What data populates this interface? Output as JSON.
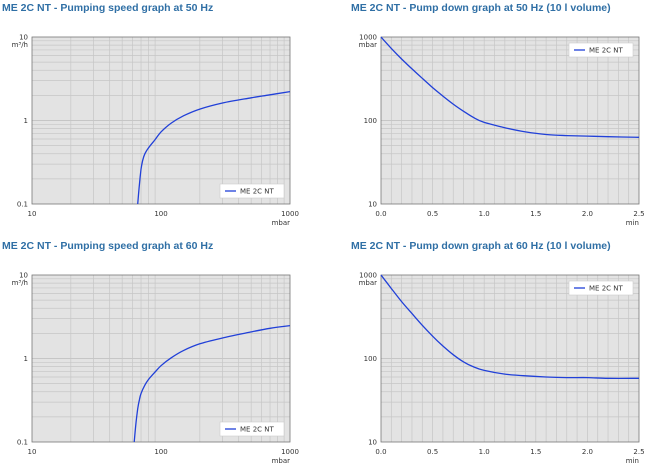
{
  "colors": {
    "title": "#2f6fa5",
    "plot_background": "#e3e3e3",
    "grid": "#c6c6c6",
    "series": "#2140d8"
  },
  "chart_data": [
    {
      "type": "line",
      "title": "ME 2C NT - Pumping speed graph at 50 Hz",
      "x_unit": "mbar",
      "y_unit": "m³/h",
      "x_scale": "log",
      "y_scale": "log",
      "xlim": [
        10,
        1000
      ],
      "ylim": [
        0.1,
        10
      ],
      "x_ticks": [
        "10",
        "100",
        "1000"
      ],
      "y_ticks": [
        "0.1",
        "1",
        "10"
      ],
      "legend_position": "bottom-right",
      "grid": true,
      "series": [
        {
          "name": "ME 2C NT",
          "x": [
            66,
            68,
            70,
            72,
            75,
            80,
            90,
            100,
            120,
            150,
            200,
            300,
            500,
            700,
            1000
          ],
          "y": [
            0.1,
            0.17,
            0.26,
            0.33,
            0.4,
            0.47,
            0.59,
            0.73,
            0.93,
            1.14,
            1.37,
            1.62,
            1.87,
            2.03,
            2.22
          ]
        }
      ]
    },
    {
      "type": "line",
      "title": "ME 2C NT - Pump down graph at 50 Hz (10 l volume)",
      "x_unit": "min",
      "y_unit": "mbar",
      "x_scale": "linear",
      "y_scale": "log",
      "xlim": [
        0,
        2.5
      ],
      "ylim": [
        10,
        1000
      ],
      "x_ticks": [
        "0.0",
        "0.5",
        "1.0",
        "1.5",
        "2.0",
        "2.5"
      ],
      "y_ticks": [
        "10",
        "100",
        "1000"
      ],
      "legend_position": "top-right",
      "grid": true,
      "series": [
        {
          "name": "ME 2C NT",
          "x": [
            0,
            0.1,
            0.2,
            0.3,
            0.4,
            0.5,
            0.6,
            0.7,
            0.8,
            0.9,
            1.0,
            1.2,
            1.4,
            1.6,
            1.8,
            2.0,
            2.2,
            2.5
          ],
          "y": [
            1000,
            730,
            545,
            415,
            320,
            248,
            196,
            157,
            129,
            108,
            95,
            82,
            73,
            68,
            66,
            65,
            64,
            63
          ]
        }
      ]
    },
    {
      "type": "line",
      "title": "ME 2C NT - Pumping speed graph at 60 Hz",
      "x_unit": "mbar",
      "y_unit": "m³/h",
      "x_scale": "log",
      "y_scale": "log",
      "xlim": [
        10,
        1000
      ],
      "ylim": [
        0.1,
        10
      ],
      "x_ticks": [
        "10",
        "100",
        "1000"
      ],
      "y_ticks": [
        "0.1",
        "1",
        "10"
      ],
      "legend_position": "bottom-right",
      "grid": true,
      "series": [
        {
          "name": "ME 2C NT",
          "x": [
            62,
            64,
            66,
            68,
            70,
            75,
            80,
            90,
            100,
            120,
            150,
            200,
            300,
            500,
            700,
            1000
          ],
          "y": [
            0.1,
            0.17,
            0.25,
            0.32,
            0.38,
            0.48,
            0.56,
            0.69,
            0.82,
            1.02,
            1.25,
            1.5,
            1.76,
            2.08,
            2.3,
            2.48
          ]
        }
      ]
    },
    {
      "type": "line",
      "title": "ME 2C NT - Pump down graph at 60 Hz (10 l volume)",
      "x_unit": "min",
      "y_unit": "mbar",
      "x_scale": "linear",
      "y_scale": "log",
      "xlim": [
        0,
        2.5
      ],
      "ylim": [
        10,
        1000
      ],
      "x_ticks": [
        "0.0",
        "0.5",
        "1.0",
        "1.5",
        "2.0",
        "2.5"
      ],
      "y_ticks": [
        "10",
        "100",
        "1000"
      ],
      "legend_position": "top-right",
      "grid": true,
      "series": [
        {
          "name": "ME 2C NT",
          "x": [
            0,
            0.1,
            0.2,
            0.3,
            0.4,
            0.5,
            0.6,
            0.7,
            0.8,
            0.9,
            1.0,
            1.2,
            1.4,
            1.6,
            1.8,
            2.0,
            2.2,
            2.5
          ],
          "y": [
            1000,
            690,
            480,
            345,
            250,
            185,
            141,
            111,
            91,
            79,
            72,
            65,
            62,
            60,
            59,
            59,
            58,
            58
          ]
        }
      ]
    }
  ]
}
